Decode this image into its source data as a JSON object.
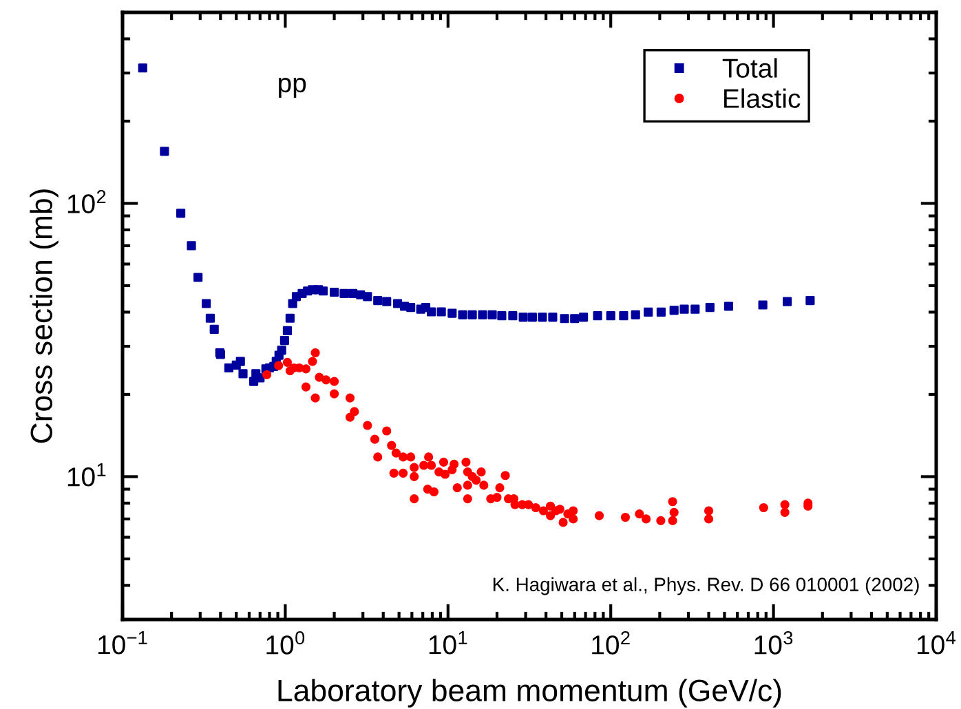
{
  "chart_data": {
    "type": "scatter",
    "xlabel": "Laboratory beam momentum (GeV/c)",
    "ylabel": "Cross section (mb)",
    "log": "xy",
    "xlim": [
      0.1,
      10000
    ],
    "ylim": [
      3,
      500
    ],
    "xticks": [
      {
        "value": 0.1,
        "label": "10$^{−1}$"
      },
      {
        "value": 1,
        "label": "10$^{0}$"
      },
      {
        "value": 10,
        "label": "10$^{1}$"
      },
      {
        "value": 100,
        "label": "10$^{2}$"
      },
      {
        "value": 1000,
        "label": "10$^{3}$"
      },
      {
        "value": 10000,
        "label": "10$^{4}$"
      }
    ],
    "yticks": [
      {
        "value": 10,
        "label": "10$^{1}$"
      },
      {
        "value": 100,
        "label": "10$^{2}$"
      }
    ],
    "grid": false,
    "legend": "top right",
    "annotations": [
      "pp",
      "K. Hagiwara et al., Phys. Rev. D 66 010001 (2002)"
    ],
    "series": [
      {
        "name": "Total",
        "color": "#00009c",
        "marker": "square",
        "x": [
          0.133,
          0.181,
          0.228,
          0.265,
          0.291,
          0.327,
          0.346,
          0.366,
          0.396,
          0.4,
          0.45,
          0.5,
          0.53,
          0.55,
          0.64,
          0.66,
          0.7,
          0.76,
          0.8,
          0.85,
          0.88,
          0.915,
          0.95,
          0.99,
          1.03,
          1.07,
          1.11,
          1.17,
          1.27,
          1.37,
          1.47,
          1.6,
          1.71,
          2.0,
          2.3,
          2.6,
          2.9,
          3.2,
          3.7,
          4.2,
          4.9,
          5.4,
          5.9,
          6.8,
          7.3,
          7.9,
          9.1,
          10.6,
          12.3,
          14.1,
          16.3,
          18.7,
          21.4,
          25,
          29,
          33,
          38,
          44,
          52,
          60,
          68,
          83,
          100,
          120,
          142,
          170,
          204,
          245,
          283,
          330,
          407,
          530,
          860,
          1215,
          1680
        ],
        "values": [
          313,
          155,
          92,
          70,
          53.6,
          43,
          38,
          34.6,
          28.4,
          28,
          25,
          25.6,
          26.4,
          23.8,
          22.3,
          23.8,
          23,
          24.8,
          25,
          25.3,
          26.4,
          27.8,
          29,
          31.5,
          34.2,
          38,
          43,
          45.6,
          46.8,
          47.8,
          48.3,
          48.3,
          47.8,
          47.3,
          46.8,
          46.8,
          46.3,
          45.6,
          44.1,
          43.7,
          43,
          42,
          41.6,
          41,
          41.6,
          40.1,
          40.1,
          39.6,
          39.1,
          39.1,
          39.1,
          39.1,
          38.8,
          38.8,
          38.3,
          38.3,
          38.3,
          38.3,
          37.9,
          37.9,
          38.3,
          38.8,
          38.8,
          38.8,
          39.1,
          40,
          40,
          40.6,
          41,
          41,
          41.6,
          42,
          42.5,
          43.7,
          44.1
        ]
      },
      {
        "name": "Elastic",
        "color": "#ff0000",
        "marker": "circle",
        "x": [
          0.77,
          0.91,
          1.03,
          1.07,
          1.13,
          1.22,
          1.34,
          1.47,
          1.53,
          1.34,
          1.53,
          1.62,
          1.78,
          2.0,
          2.0,
          2.5,
          2.66,
          2.5,
          3.2,
          3.55,
          3.7,
          4.2,
          4.5,
          4.65,
          4.8,
          5.3,
          5.3,
          5.9,
          6.2,
          6.2,
          6.2,
          7.1,
          7.6,
          7.9,
          7.5,
          8.2,
          8.8,
          9.4,
          9.6,
          10.6,
          10.9,
          11.4,
          12.9,
          13.2,
          13.2,
          13.2,
          14.1,
          14.9,
          16,
          16.6,
          18.3,
          20,
          20.8,
          22.5,
          23.5,
          25.4,
          25.8,
          28.6,
          31.2,
          34.6,
          38.6,
          42.6,
          42.6,
          46,
          48.7,
          51,
          54.5,
          58.8,
          58.8,
          85,
          123,
          150,
          165,
          203,
          240,
          245,
          240,
          400,
          400,
          870,
          1175,
          1175,
          1630,
          1630
        ],
        "values": [
          23.6,
          25.5,
          26.2,
          24.4,
          25,
          25,
          24.8,
          26.4,
          28.4,
          21.3,
          19.4,
          23.1,
          22.6,
          22.3,
          20.1,
          19.4,
          17.3,
          16.5,
          15.4,
          13.7,
          11.8,
          14.7,
          13,
          10.3,
          12.2,
          11.8,
          10.3,
          11.8,
          10.8,
          10,
          8.3,
          11,
          11.8,
          11,
          9,
          8.8,
          10.4,
          11.3,
          10.2,
          10.6,
          11.1,
          9.1,
          11.3,
          10.4,
          9.3,
          8.3,
          10,
          9.7,
          10.4,
          9.3,
          8.3,
          8.4,
          9.1,
          10.1,
          8.3,
          8.3,
          7.9,
          7.9,
          7.9,
          7.7,
          7.5,
          7.8,
          7.2,
          7.5,
          7.6,
          6.8,
          7.3,
          7.5,
          7,
          7.2,
          7.1,
          7.3,
          7,
          6.9,
          8.1,
          7.4,
          6.9,
          7.5,
          7,
          7.7,
          7.9,
          7.4,
          8,
          7.8
        ]
      }
    ]
  }
}
